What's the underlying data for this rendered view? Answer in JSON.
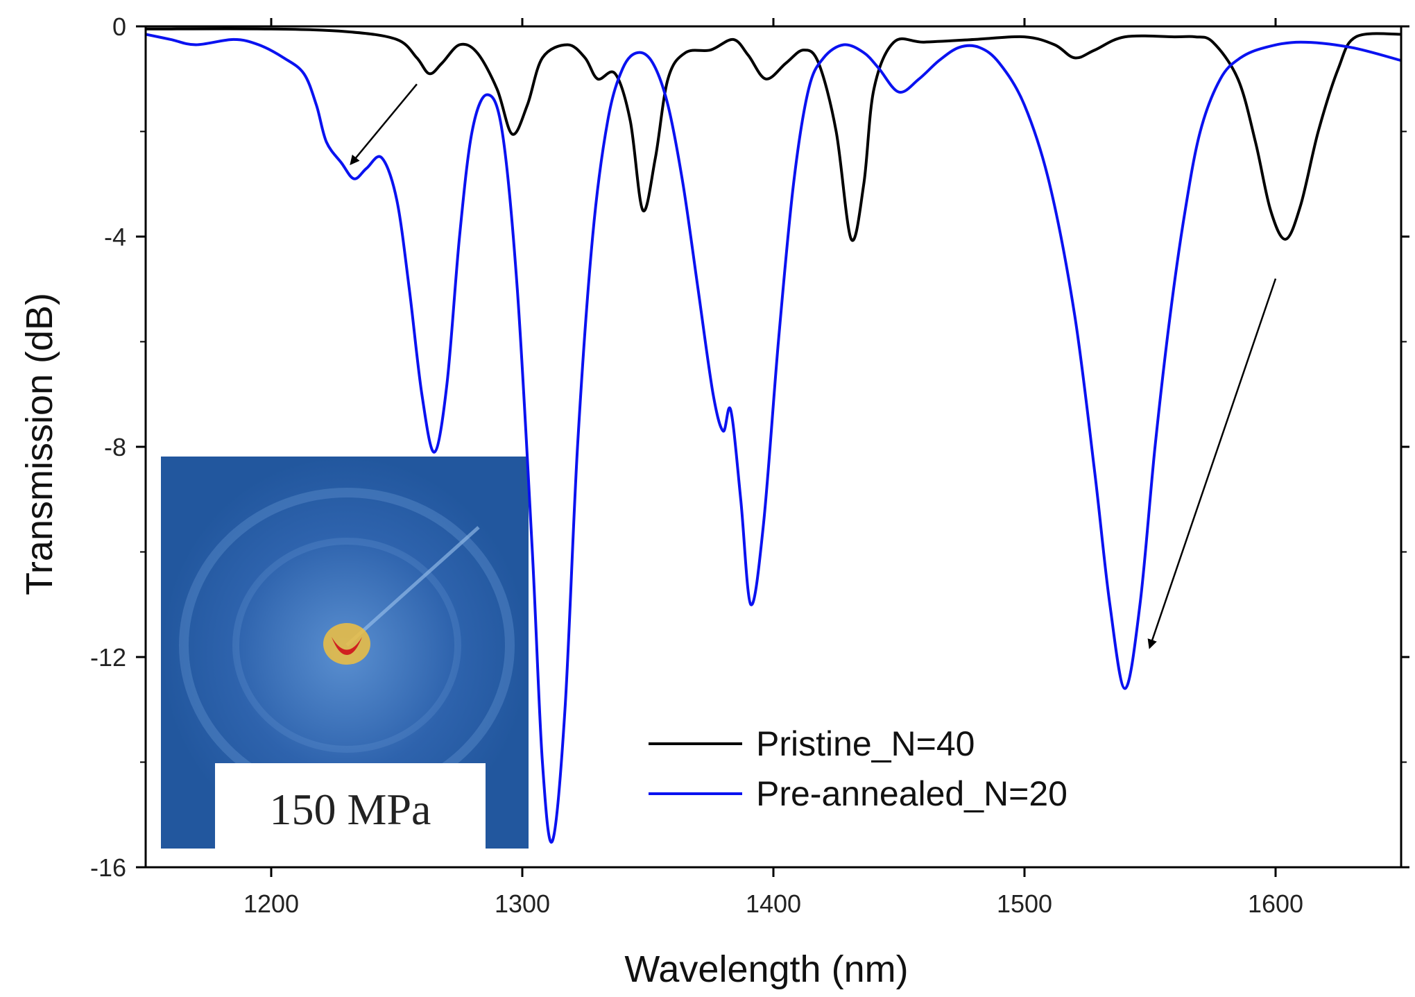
{
  "chart_data": {
    "type": "line",
    "title": "",
    "xlabel": "Wavelength (nm)",
    "ylabel": "Transmission (dB)",
    "xlim": [
      1150,
      1650
    ],
    "ylim": [
      -16,
      0
    ],
    "x_ticks": [
      1200,
      1300,
      1400,
      1500,
      1600
    ],
    "y_ticks": [
      0,
      -4,
      -8,
      -12,
      -16
    ],
    "legend_position": "bottom-right",
    "series": [
      {
        "name": "Pristine_N=40",
        "color": "#000000",
        "points": [
          [
            1150,
            -0.05
          ],
          [
            1200,
            -0.05
          ],
          [
            1230,
            -0.1
          ],
          [
            1250,
            -0.25
          ],
          [
            1258,
            -0.6
          ],
          [
            1263,
            -0.9
          ],
          [
            1268,
            -0.7
          ],
          [
            1275,
            -0.35
          ],
          [
            1282,
            -0.5
          ],
          [
            1290,
            -1.2
          ],
          [
            1296,
            -2.05
          ],
          [
            1302,
            -1.5
          ],
          [
            1308,
            -0.6
          ],
          [
            1318,
            -0.35
          ],
          [
            1325,
            -0.6
          ],
          [
            1330,
            -1.0
          ],
          [
            1337,
            -0.9
          ],
          [
            1343,
            -1.8
          ],
          [
            1348,
            -3.5
          ],
          [
            1353,
            -2.5
          ],
          [
            1358,
            -1.0
          ],
          [
            1365,
            -0.5
          ],
          [
            1375,
            -0.45
          ],
          [
            1384,
            -0.25
          ],
          [
            1390,
            -0.55
          ],
          [
            1397,
            -1.0
          ],
          [
            1405,
            -0.7
          ],
          [
            1412,
            -0.45
          ],
          [
            1418,
            -0.7
          ],
          [
            1425,
            -2.0
          ],
          [
            1431,
            -4.05
          ],
          [
            1436,
            -3.0
          ],
          [
            1440,
            -1.2
          ],
          [
            1448,
            -0.3
          ],
          [
            1460,
            -0.3
          ],
          [
            1480,
            -0.25
          ],
          [
            1500,
            -0.2
          ],
          [
            1512,
            -0.35
          ],
          [
            1520,
            -0.6
          ],
          [
            1528,
            -0.45
          ],
          [
            1540,
            -0.2
          ],
          [
            1560,
            -0.2
          ],
          [
            1568,
            -0.2
          ],
          [
            1575,
            -0.3
          ],
          [
            1585,
            -1.0
          ],
          [
            1592,
            -2.2
          ],
          [
            1598,
            -3.5
          ],
          [
            1604,
            -4.05
          ],
          [
            1610,
            -3.4
          ],
          [
            1617,
            -2.0
          ],
          [
            1625,
            -0.8
          ],
          [
            1632,
            -0.2
          ],
          [
            1650,
            -0.15
          ]
        ]
      },
      {
        "name": "Pre-annealed_N=20",
        "color": "#0a12f0",
        "points": [
          [
            1150,
            -0.15
          ],
          [
            1160,
            -0.25
          ],
          [
            1170,
            -0.35
          ],
          [
            1185,
            -0.25
          ],
          [
            1195,
            -0.35
          ],
          [
            1205,
            -0.6
          ],
          [
            1213,
            -0.9
          ],
          [
            1218,
            -1.5
          ],
          [
            1222,
            -2.2
          ],
          [
            1228,
            -2.6
          ],
          [
            1233,
            -2.9
          ],
          [
            1238,
            -2.7
          ],
          [
            1244,
            -2.5
          ],
          [
            1250,
            -3.3
          ],
          [
            1255,
            -5.0
          ],
          [
            1260,
            -7.0
          ],
          [
            1265,
            -8.1
          ],
          [
            1270,
            -6.8
          ],
          [
            1275,
            -4.0
          ],
          [
            1280,
            -2.0
          ],
          [
            1286,
            -1.3
          ],
          [
            1292,
            -2.0
          ],
          [
            1298,
            -5.0
          ],
          [
            1304,
            -10.0
          ],
          [
            1308,
            -14.0
          ],
          [
            1312,
            -15.5
          ],
          [
            1317,
            -13.0
          ],
          [
            1322,
            -8.0
          ],
          [
            1328,
            -4.0
          ],
          [
            1334,
            -1.8
          ],
          [
            1340,
            -0.8
          ],
          [
            1346,
            -0.5
          ],
          [
            1352,
            -0.7
          ],
          [
            1358,
            -1.5
          ],
          [
            1364,
            -3.0
          ],
          [
            1370,
            -5.0
          ],
          [
            1376,
            -7.0
          ],
          [
            1380,
            -7.7
          ],
          [
            1383,
            -7.3
          ],
          [
            1387,
            -9.0
          ],
          [
            1391,
            -11.0
          ],
          [
            1396,
            -9.5
          ],
          [
            1402,
            -6.0
          ],
          [
            1408,
            -3.0
          ],
          [
            1414,
            -1.2
          ],
          [
            1420,
            -0.6
          ],
          [
            1428,
            -0.35
          ],
          [
            1436,
            -0.5
          ],
          [
            1442,
            -0.8
          ],
          [
            1450,
            -1.25
          ],
          [
            1458,
            -1.0
          ],
          [
            1466,
            -0.65
          ],
          [
            1474,
            -0.4
          ],
          [
            1482,
            -0.4
          ],
          [
            1490,
            -0.7
          ],
          [
            1500,
            -1.5
          ],
          [
            1510,
            -3.0
          ],
          [
            1520,
            -5.5
          ],
          [
            1528,
            -8.5
          ],
          [
            1534,
            -11.0
          ],
          [
            1540,
            -12.6
          ],
          [
            1546,
            -11.0
          ],
          [
            1552,
            -8.0
          ],
          [
            1558,
            -5.5
          ],
          [
            1564,
            -3.5
          ],
          [
            1570,
            -2.0
          ],
          [
            1578,
            -1.0
          ],
          [
            1586,
            -0.6
          ],
          [
            1596,
            -0.4
          ],
          [
            1610,
            -0.3
          ],
          [
            1630,
            -0.4
          ],
          [
            1650,
            -0.65
          ]
        ]
      }
    ],
    "annotations": [
      {
        "type": "arrow",
        "from": [
          1258,
          -1.1
        ],
        "to": [
          1232,
          -2.6
        ]
      },
      {
        "type": "arrow",
        "from": [
          1600,
          -4.8
        ],
        "to": [
          1550,
          -11.8
        ]
      }
    ],
    "inset": {
      "description_label": "150 MPa"
    }
  }
}
